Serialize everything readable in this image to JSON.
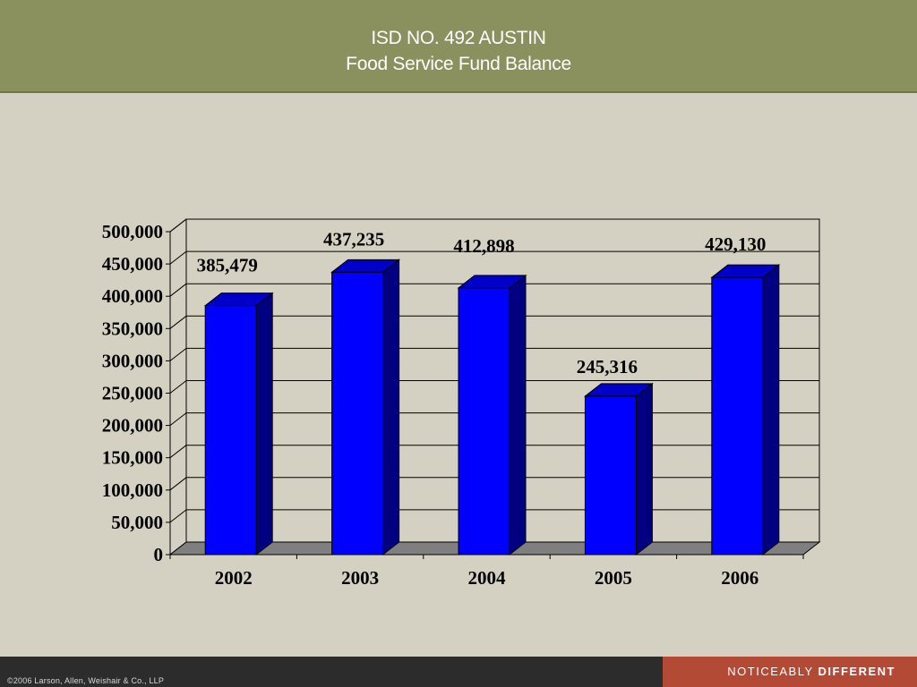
{
  "header": {
    "title_line1": "ISD NO. 492 AUSTIN",
    "title_line2": "Food Service Fund Balance"
  },
  "footer": {
    "copyright": "©2006 Larson, Allen, Weishair & Co., LLP",
    "tagline_regular": "NOTICEABLY ",
    "tagline_bold": "DIFFERENT"
  },
  "colors": {
    "header_bg": "#8a915f",
    "page_bg": "#d4d1c2",
    "bar_front": "#0000ff",
    "bar_side": "#000080",
    "bar_top": "#0000c8",
    "footer_bg": "#2c2c2c",
    "tagline_bg": "#b24a36"
  },
  "chart_data": {
    "type": "bar",
    "style": "3d-column",
    "title": "",
    "xlabel": "",
    "ylabel": "",
    "categories": [
      "2002",
      "2003",
      "2004",
      "2005",
      "2006"
    ],
    "values": [
      385479,
      437235,
      412898,
      245316,
      429130
    ],
    "data_labels": [
      "385,479",
      "437,235",
      "412,898",
      "245,316",
      "429,130"
    ],
    "ylim": [
      0,
      500000
    ],
    "yticks": [
      0,
      50000,
      100000,
      150000,
      200000,
      250000,
      300000,
      350000,
      400000,
      450000,
      500000
    ],
    "ytick_labels": [
      "0",
      "50,000",
      "100,000",
      "150,000",
      "200,000",
      "250,000",
      "300,000",
      "350,000",
      "400,000",
      "450,000",
      "500,000"
    ],
    "grid": true,
    "legend": "none"
  }
}
